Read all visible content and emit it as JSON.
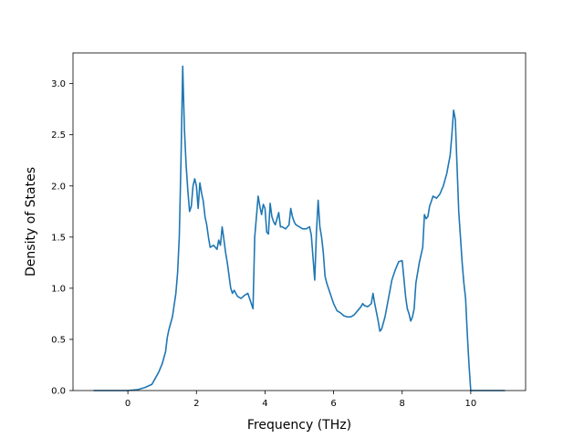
{
  "chart_data": {
    "type": "line",
    "title": "",
    "xlabel": "Frequency (THz)",
    "ylabel": "Density of States",
    "xlim": [
      -1.6,
      11.6
    ],
    "ylim": [
      0.0,
      3.3
    ],
    "xticks": [
      0,
      2,
      4,
      6,
      8,
      10
    ],
    "yticks": [
      0.0,
      0.5,
      1.0,
      1.5,
      2.0,
      2.5,
      3.0
    ],
    "xtick_labels": [
      "0",
      "2",
      "4",
      "6",
      "8",
      "10"
    ],
    "ytick_labels": [
      "0.0",
      "0.5",
      "1.0",
      "1.5",
      "2.0",
      "2.5",
      "3.0"
    ],
    "grid": false,
    "legend": "none",
    "series": [
      {
        "color": "#1f77b4",
        "x": [
          -1.0,
          -0.5,
          0.0,
          0.3,
          0.5,
          0.7,
          0.8,
          0.9,
          1.0,
          1.1,
          1.15,
          1.2,
          1.3,
          1.4,
          1.45,
          1.5,
          1.55,
          1.6,
          1.65,
          1.7,
          1.75,
          1.8,
          1.85,
          1.9,
          1.95,
          2.0,
          2.05,
          2.1,
          2.15,
          2.2,
          2.25,
          2.3,
          2.35,
          2.4,
          2.5,
          2.6,
          2.65,
          2.7,
          2.75,
          2.8,
          2.85,
          2.9,
          3.0,
          3.05,
          3.1,
          3.2,
          3.3,
          3.4,
          3.5,
          3.6,
          3.65,
          3.7,
          3.8,
          3.85,
          3.9,
          3.95,
          4.0,
          4.05,
          4.1,
          4.15,
          4.2,
          4.25,
          4.3,
          4.4,
          4.45,
          4.5,
          4.6,
          4.7,
          4.75,
          4.8,
          4.85,
          4.9,
          5.0,
          5.1,
          5.2,
          5.3,
          5.35,
          5.4,
          5.45,
          5.5,
          5.55,
          5.6,
          5.65,
          5.7,
          5.75,
          5.8,
          5.85,
          5.9,
          6.0,
          6.1,
          6.2,
          6.3,
          6.4,
          6.5,
          6.6,
          6.7,
          6.8,
          6.85,
          6.9,
          7.0,
          7.1,
          7.15,
          7.2,
          7.3,
          7.35,
          7.4,
          7.5,
          7.6,
          7.7,
          7.8,
          7.9,
          8.0,
          8.05,
          8.1,
          8.15,
          8.2,
          8.25,
          8.3,
          8.35,
          8.4,
          8.5,
          8.6,
          8.65,
          8.7,
          8.75,
          8.8,
          8.9,
          9.0,
          9.1,
          9.2,
          9.3,
          9.4,
          9.45,
          9.5,
          9.55,
          9.6,
          9.65,
          9.7,
          9.75,
          9.8,
          9.85,
          9.9,
          9.95,
          10.0,
          10.5,
          11.0
        ],
        "y": [
          0.0,
          0.0,
          0.0,
          0.01,
          0.03,
          0.06,
          0.12,
          0.18,
          0.26,
          0.38,
          0.52,
          0.6,
          0.72,
          0.95,
          1.15,
          1.5,
          2.25,
          3.17,
          2.55,
          2.2,
          1.95,
          1.75,
          1.8,
          2.0,
          2.07,
          2.0,
          1.78,
          2.03,
          1.93,
          1.85,
          1.7,
          1.62,
          1.5,
          1.4,
          1.42,
          1.38,
          1.47,
          1.42,
          1.6,
          1.48,
          1.35,
          1.25,
          1.0,
          0.95,
          0.98,
          0.92,
          0.9,
          0.93,
          0.95,
          0.85,
          0.8,
          1.5,
          1.9,
          1.8,
          1.72,
          1.82,
          1.78,
          1.55,
          1.53,
          1.83,
          1.7,
          1.65,
          1.62,
          1.74,
          1.6,
          1.6,
          1.58,
          1.62,
          1.78,
          1.7,
          1.65,
          1.62,
          1.6,
          1.58,
          1.58,
          1.6,
          1.52,
          1.3,
          1.08,
          1.55,
          1.86,
          1.6,
          1.5,
          1.35,
          1.12,
          1.05,
          1.0,
          0.95,
          0.85,
          0.78,
          0.76,
          0.73,
          0.72,
          0.72,
          0.74,
          0.78,
          0.82,
          0.85,
          0.83,
          0.82,
          0.85,
          0.95,
          0.85,
          0.68,
          0.58,
          0.6,
          0.72,
          0.9,
          1.08,
          1.18,
          1.26,
          1.27,
          1.1,
          0.92,
          0.8,
          0.75,
          0.68,
          0.72,
          0.8,
          1.05,
          1.25,
          1.4,
          1.72,
          1.68,
          1.7,
          1.8,
          1.9,
          1.88,
          1.92,
          2.0,
          2.12,
          2.3,
          2.5,
          2.74,
          2.65,
          2.2,
          1.75,
          1.5,
          1.25,
          1.05,
          0.9,
          0.55,
          0.25,
          0.0,
          0.0,
          0.0
        ]
      }
    ]
  }
}
